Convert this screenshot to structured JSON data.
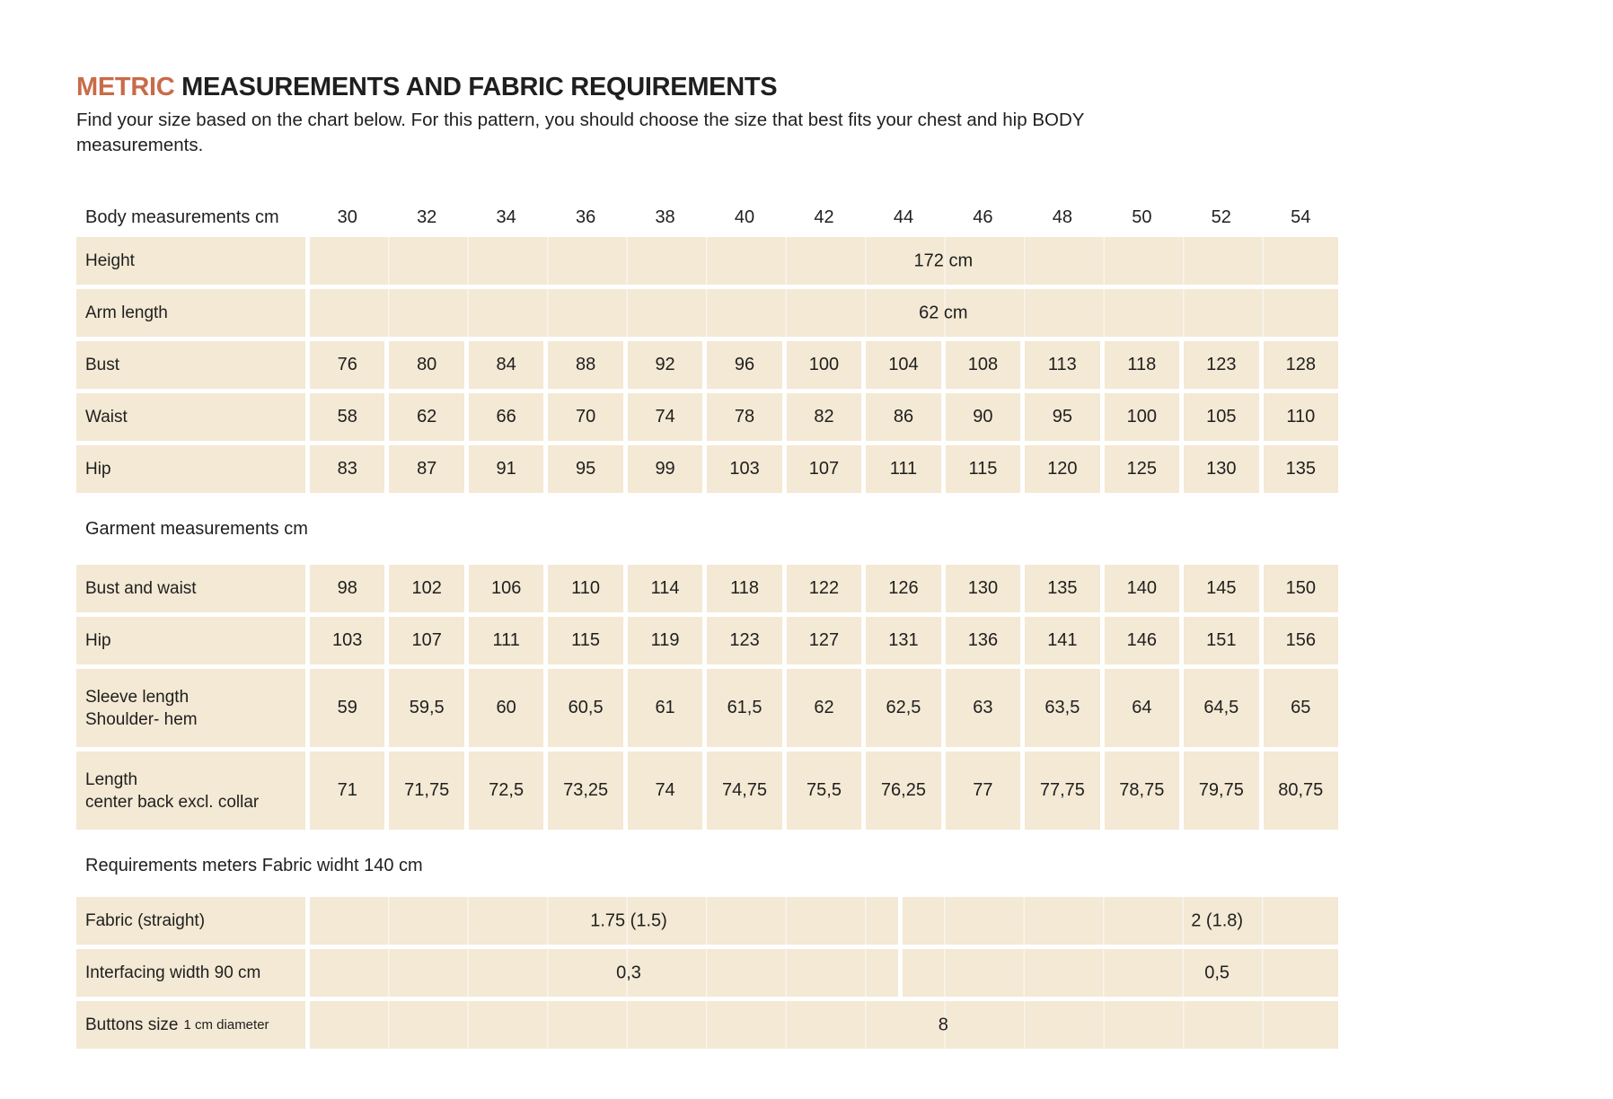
{
  "page": {
    "title_accent": "METRIC",
    "title_rest": " MEASUREMENTS AND FABRIC REQUIREMENTS",
    "subtitle_line1": "Find your size based on the chart below. For this pattern, you should choose the size that best fits your chest and hip BODY",
    "subtitle_line2": "measurements."
  },
  "colors": {
    "accent": "#c96b49",
    "cell_background": "#f3e9d4",
    "text": "#1f1f1f"
  },
  "size_header": {
    "label": "Body measurements cm",
    "sizes": [
      "30",
      "32",
      "34",
      "36",
      "38",
      "40",
      "42",
      "44",
      "46",
      "48",
      "50",
      "52",
      "54"
    ]
  },
  "body_section": {
    "rows": [
      {
        "label": "Height",
        "type": "merged",
        "value": "172 cm"
      },
      {
        "label": "Arm length",
        "type": "merged",
        "value": "62 cm"
      },
      {
        "label": "Bust",
        "type": "cells",
        "values": [
          "76",
          "80",
          "84",
          "88",
          "92",
          "96",
          "100",
          "104",
          "108",
          "113",
          "118",
          "123",
          "128"
        ]
      },
      {
        "label": "Waist",
        "type": "cells",
        "values": [
          "58",
          "62",
          "66",
          "70",
          "74",
          "78",
          "82",
          "86",
          "90",
          "95",
          "100",
          "105",
          "110"
        ]
      },
      {
        "label": "Hip",
        "type": "cells",
        "values": [
          "83",
          "87",
          "91",
          "95",
          "99",
          "103",
          "107",
          "111",
          "115",
          "120",
          "125",
          "130",
          "135"
        ]
      }
    ]
  },
  "garment_section": {
    "heading": "Garment measurements cm",
    "rows": [
      {
        "label_lines": [
          "Bust and waist"
        ],
        "values": [
          "98",
          "102",
          "106",
          "110",
          "114",
          "118",
          "122",
          "126",
          "130",
          "135",
          "140",
          "145",
          "150"
        ]
      },
      {
        "label_lines": [
          "Hip"
        ],
        "values": [
          "103",
          "107",
          "111",
          "115",
          "119",
          "123",
          "127",
          "131",
          "136",
          "141",
          "146",
          "151",
          "156"
        ]
      },
      {
        "label_lines": [
          "Sleeve length",
          "Shoulder- hem"
        ],
        "values": [
          "59",
          "59,5",
          "60",
          "60,5",
          "61",
          "61,5",
          "62",
          "62,5",
          "63",
          "63,5",
          "64",
          "64,5",
          "65"
        ]
      },
      {
        "label_lines": [
          "Length",
          "center back excl. collar"
        ],
        "values": [
          "71",
          "71,75",
          "72,5",
          "73,25",
          "74",
          "74,75",
          "75,5",
          "76,25",
          "77",
          "77,75",
          "78,75",
          "79,75",
          "80,75"
        ]
      }
    ]
  },
  "requirements_section": {
    "heading": "Requirements meters Fabric widht 140 cm",
    "rows": [
      {
        "type": "split",
        "label": "Fabric  (straight)",
        "left_value": "1.75 (1.5)",
        "right_value": "2 (1.8)"
      },
      {
        "type": "split",
        "label": "Interfacing width 90 cm",
        "left_value": "0,3",
        "right_value": "0,5"
      },
      {
        "type": "merged",
        "label": "Buttons size",
        "label_small": "1 cm diameter",
        "value": "8"
      }
    ]
  }
}
